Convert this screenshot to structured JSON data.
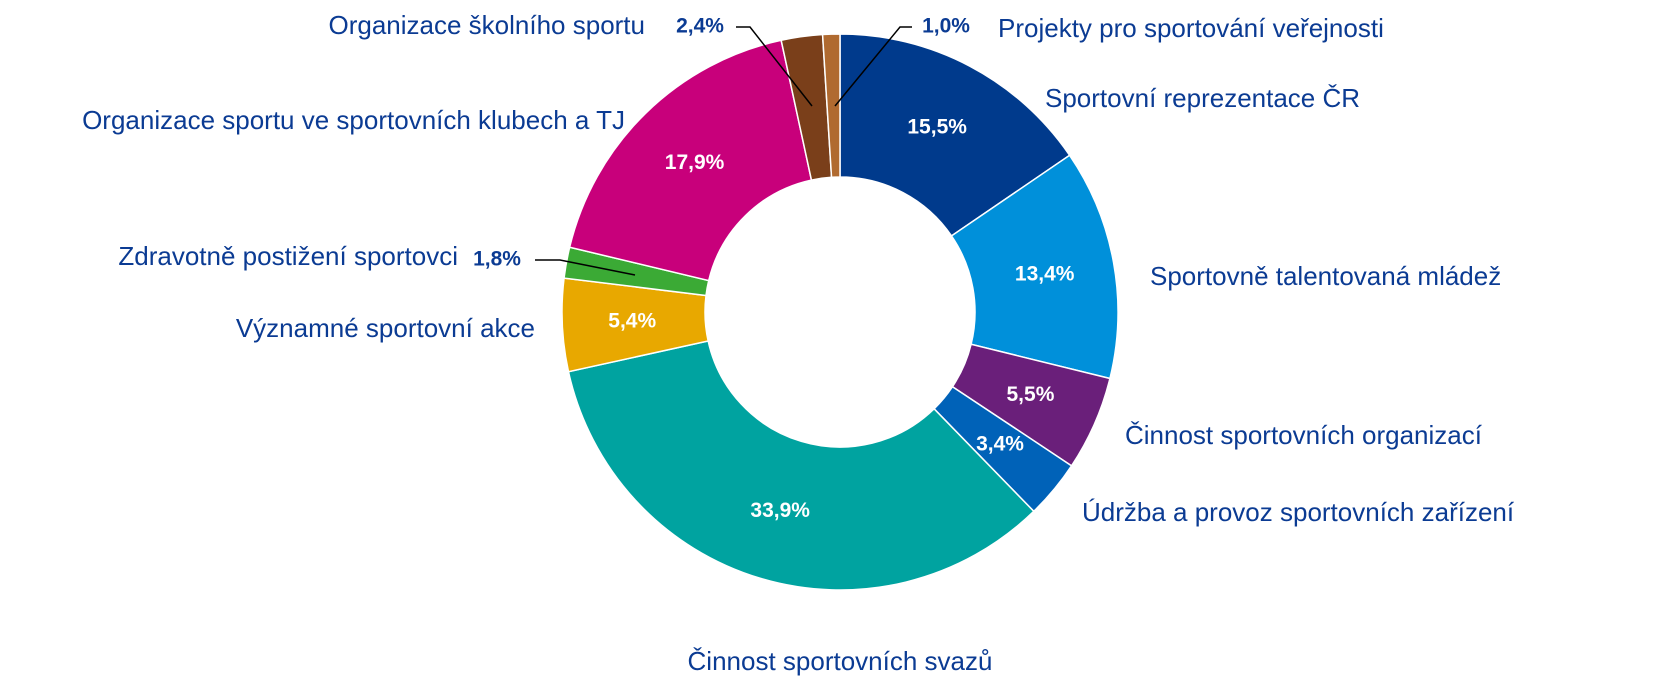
{
  "chart_data": {
    "type": "donut",
    "categories": [
      "Sportovní reprezentace ČR",
      "Sportovně talentovaná mládež",
      "Činnost sportovních organizací",
      "Údržba a provoz sportovních zařízení",
      "Činnost sportovních svazů",
      "Významné sportovní akce",
      "Zdravotně postižení sportovci",
      "Organizace sportu ve sportovních klubech a TJ",
      "Organizace školního sportu",
      "Projekty pro sportování veřejnosti"
    ],
    "values": [
      15.5,
      13.4,
      5.5,
      3.4,
      33.9,
      5.4,
      1.8,
      17.9,
      2.4,
      1.0
    ],
    "value_labels": [
      "15,5%",
      "13,4%",
      "5,5%",
      "3,4%",
      "33,9%",
      "5,4%",
      "1,8%",
      "17,9%",
      "2,4%",
      "1,0%"
    ],
    "colors": [
      "#003a8c",
      "#0090da",
      "#6a1f7a",
      "#0062b8",
      "#00a3a0",
      "#e8a800",
      "#3baa35",
      "#c8007b",
      "#7a3f1a",
      "#b06a30"
    ]
  }
}
